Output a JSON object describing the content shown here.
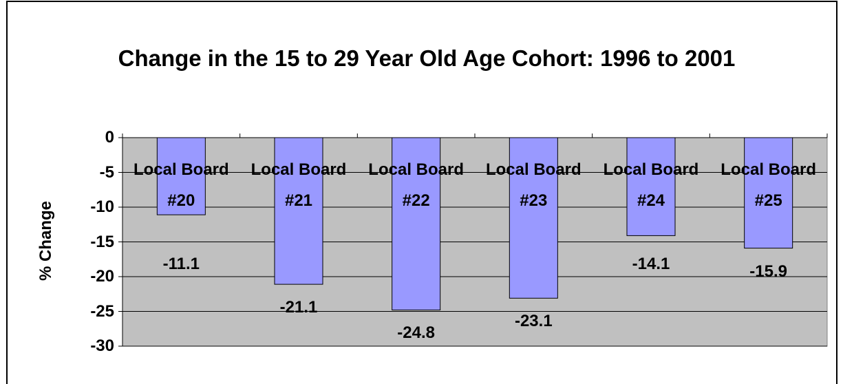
{
  "chart_data": {
    "type": "bar",
    "title": "Change in the 15 to 29 Year Old Age Cohort: 1996 to 2001",
    "y_label": "% Change",
    "categories": [
      "Local Board #20",
      "Local Board #21",
      "Local Board #22",
      "Local Board #23",
      "Local Board #24",
      "Local Board #25"
    ],
    "values": [
      -11.1,
      -21.1,
      -24.8,
      -23.1,
      -14.1,
      -15.9
    ],
    "color": "#9999ff",
    "ylim": [
      -30,
      0
    ],
    "yticks": [
      0,
      -5,
      -10,
      -15,
      -20,
      -25,
      -30
    ],
    "grid": true
  }
}
